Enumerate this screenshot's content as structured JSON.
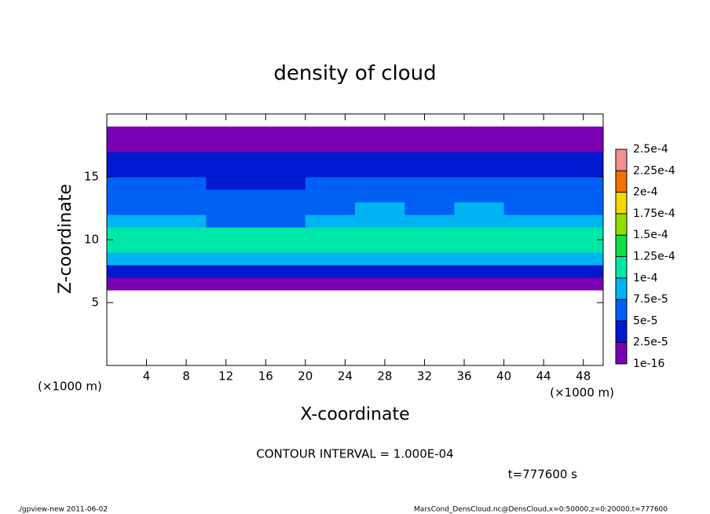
{
  "chart_data": {
    "type": "heatmap",
    "title": "density of cloud",
    "x_label": "X-coordinate",
    "y_label": "Z-coordinate",
    "x_unit": "(×1000 m)",
    "y_unit": "(×1000 m)",
    "contour_note": "CONTOUR INTERVAL = 1.000E-04",
    "time_note": "t=777600 s",
    "footer_left": "./gpview-new  2011-06-02",
    "footer_right": "MarsCond_DensCloud.nc@DensCloud,x=0:50000,z=0:20000,t=777600",
    "xlim": [
      0,
      50
    ],
    "ylim": [
      0,
      20
    ],
    "xticks": [
      4,
      8,
      12,
      16,
      20,
      24,
      28,
      32,
      36,
      40,
      44,
      48
    ],
    "yticks": [
      5,
      10,
      15
    ],
    "x_edges": [
      0,
      5,
      10,
      15,
      20,
      25,
      30,
      35,
      40,
      45,
      50
    ],
    "y_edges": [
      6,
      7,
      8,
      9,
      10,
      11,
      12,
      13,
      14,
      15,
      16,
      17,
      18,
      19
    ],
    "values": [
      [
        1e-16,
        1e-16,
        1e-16,
        1e-16,
        1e-16,
        1e-16,
        1e-16,
        1e-16,
        1e-16,
        1e-16
      ],
      [
        3.5e-05,
        3e-05,
        3.5e-05,
        4e-05,
        4e-05,
        3.5e-05,
        3e-05,
        3.5e-05,
        4e-05,
        3.5e-05
      ],
      [
        8.5e-05,
        8e-05,
        9e-05,
        8.5e-05,
        9e-05,
        9e-05,
        8.5e-05,
        9e-05,
        8.5e-05,
        8e-05
      ],
      [
        0.000115,
        0.00011,
        0.00011,
        0.000105,
        0.000115,
        0.00012,
        0.00012,
        0.000115,
        0.000115,
        0.00011
      ],
      [
        0.00011,
        0.000105,
        0.000105,
        0.000105,
        0.00011,
        0.000115,
        0.00011,
        0.00011,
        0.000105,
        0.000105
      ],
      [
        8e-05,
        7.5e-05,
        7e-05,
        7e-05,
        8e-05,
        9e-05,
        8.5e-05,
        9e-05,
        8e-05,
        7.5e-05
      ],
      [
        7e-05,
        6.5e-05,
        6e-05,
        6e-05,
        7e-05,
        7.5e-05,
        7e-05,
        7.5e-05,
        6.5e-05,
        6e-05
      ],
      [
        6e-05,
        5.5e-05,
        5e-05,
        5e-05,
        5.5e-05,
        6e-05,
        6e-05,
        5.5e-05,
        5.5e-05,
        5e-05
      ],
      [
        5.5e-05,
        5e-05,
        4.5e-05,
        4.5e-05,
        5e-05,
        5.5e-05,
        5e-05,
        5e-05,
        5.5e-05,
        5.5e-05
      ],
      [
        4.5e-05,
        4.5e-05,
        4e-05,
        4e-05,
        4.5e-05,
        4.5e-05,
        4.5e-05,
        4.5e-05,
        4.5e-05,
        4.5e-05
      ],
      [
        3e-05,
        3e-05,
        3e-05,
        3e-05,
        3e-05,
        3e-05,
        3e-05,
        3e-05,
        3e-05,
        3e-05
      ],
      [
        1.5e-05,
        1.5e-05,
        1.5e-05,
        1.5e-05,
        1.5e-05,
        1.5e-05,
        1.5e-05,
        1.5e-05,
        1.5e-05,
        1.5e-05
      ],
      [
        1e-16,
        1e-16,
        1e-16,
        1e-16,
        1e-16,
        1e-16,
        1e-16,
        1e-16,
        1e-16,
        1e-16
      ]
    ],
    "levels": [
      1e-16,
      {
        "value": 2.5e-05,
        "label": "2.5e-5"
      },
      {
        "value": 5e-05,
        "label": "5e-5"
      },
      {
        "value": 7.5e-05,
        "label": "7.5e-5"
      },
      {
        "value": 0.0001,
        "label": "1e-4"
      },
      {
        "value": 0.000125,
        "label": "1.25e-4"
      },
      {
        "value": 0.00015,
        "label": "1.5e-4"
      },
      {
        "value": 0.000175,
        "label": "1.75e-4"
      },
      {
        "value": 0.0002,
        "label": "2e-4"
      },
      {
        "value": 0.000225,
        "label": "2.25e-4"
      },
      {
        "value": 0.00025,
        "label": "2.5e-4"
      }
    ],
    "colors": [
      "#7a00b4",
      "#0018d0",
      "#0060f4",
      "#00b4f4",
      "#00e8a8",
      "#10e040",
      "#90e000",
      "#f4d800",
      "#f47000",
      "#f09090"
    ]
  }
}
